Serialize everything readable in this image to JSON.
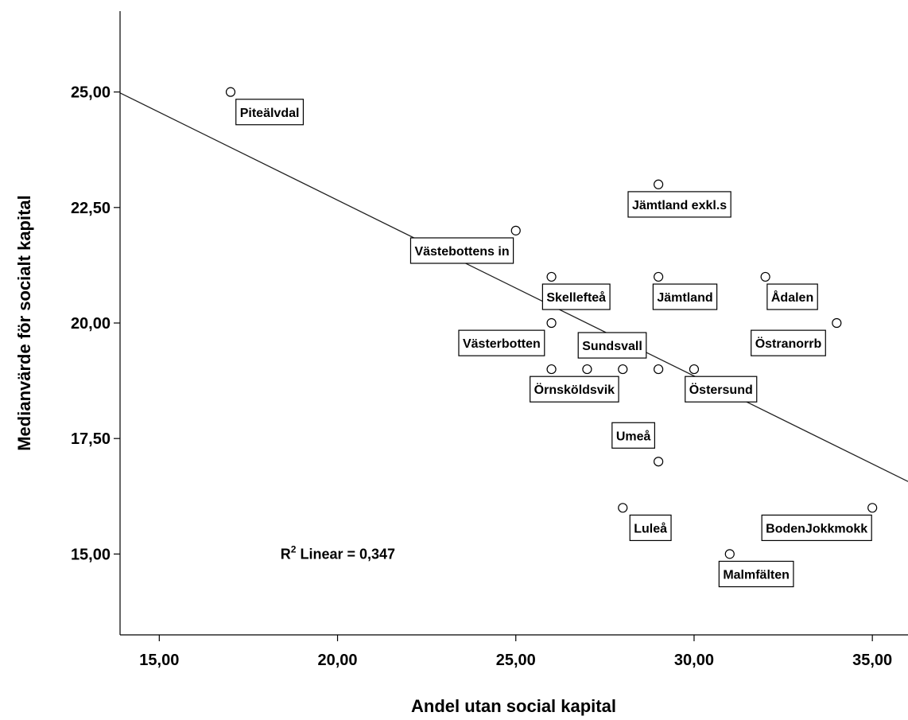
{
  "chart_data": {
    "type": "scatter",
    "xlabel": "Andel utan social kapital",
    "ylabel": "Medianvärde för socialt kapital",
    "xlim": [
      13.9,
      36.0
    ],
    "ylim": [
      13.25,
      26.75
    ],
    "x_ticks": [
      "15,00",
      "20,00",
      "25,00",
      "30,00",
      "35,00"
    ],
    "x_tick_values": [
      15,
      20,
      25,
      30,
      35
    ],
    "y_ticks": [
      "15,00",
      "17,50",
      "20,00",
      "22,50",
      "25,00"
    ],
    "y_tick_values": [
      15,
      17.5,
      20,
      22.5,
      25
    ],
    "points": [
      {
        "x": 17,
        "y": 25
      },
      {
        "x": 25,
        "y": 22
      },
      {
        "x": 29,
        "y": 23
      },
      {
        "x": 26,
        "y": 21
      },
      {
        "x": 29,
        "y": 21
      },
      {
        "x": 32,
        "y": 21
      },
      {
        "x": 26,
        "y": 20
      },
      {
        "x": 34,
        "y": 20
      },
      {
        "x": 26,
        "y": 19
      },
      {
        "x": 27,
        "y": 19
      },
      {
        "x": 28,
        "y": 19
      },
      {
        "x": 29,
        "y": 19
      },
      {
        "x": 30,
        "y": 19
      },
      {
        "x": 29,
        "y": 17
      },
      {
        "x": 28,
        "y": 16
      },
      {
        "x": 35,
        "y": 16
      },
      {
        "x": 31,
        "y": 15
      }
    ],
    "labels": [
      {
        "text": "Piteälvdal",
        "x": 17.15,
        "y": 24.55
      },
      {
        "text": "Jämtland exkl.s",
        "x": 28.15,
        "y": 22.55
      },
      {
        "text": "Västebottens in",
        "x": 22.05,
        "y": 21.55
      },
      {
        "text": "Skellefteå",
        "x": 25.75,
        "y": 20.55
      },
      {
        "text": "Jämtland",
        "x": 28.85,
        "y": 20.55
      },
      {
        "text": "Ådalen",
        "x": 32.05,
        "y": 20.55
      },
      {
        "text": "Västerbotten",
        "x": 23.4,
        "y": 19.55
      },
      {
        "text": "Sundsvall",
        "x": 26.75,
        "y": 19.5
      },
      {
        "text": "Östranorrb",
        "x": 31.6,
        "y": 19.55
      },
      {
        "text": "Örnsköldsvik",
        "x": 25.4,
        "y": 18.55
      },
      {
        "text": "Östersund",
        "x": 29.75,
        "y": 18.55
      },
      {
        "text": "Umeå",
        "x": 27.7,
        "y": 17.55
      },
      {
        "text": "Luleå",
        "x": 28.2,
        "y": 15.55
      },
      {
        "text": "BodenJokkmokk",
        "x": 31.9,
        "y": 15.55
      },
      {
        "text": "Malmfälten",
        "x": 30.7,
        "y": 14.55
      }
    ],
    "fit_line": {
      "x": [
        13.9,
        36.0
      ],
      "y": [
        24.98,
        16.57
      ]
    },
    "r2_text": {
      "prefix": "R",
      "sup": "2",
      "rest": " Linear = 0,347"
    }
  }
}
